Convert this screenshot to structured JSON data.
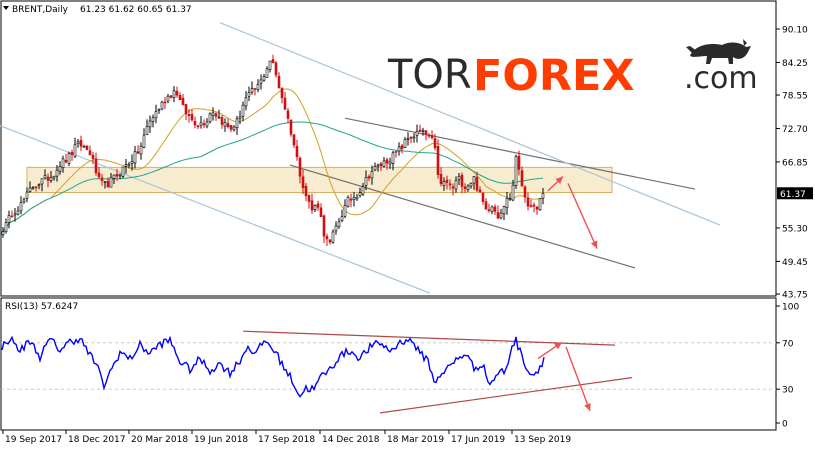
{
  "colors": {
    "background": "#ffffff",
    "frame": "#000000",
    "candle_bull": "#000000",
    "candle_bear": "#d01010",
    "ma_fast": "#d4a020",
    "ma_slow": "#22a58a",
    "rsi_line": "#0000ff",
    "channel_gray": "#707070",
    "channel_blue": "#a8c4d8",
    "rsi_trend": "#b04848",
    "resistance_zone": "#e8c878",
    "arrows": "#f05050",
    "brand_dark": "#2b2b2b",
    "brand_orange": "#ff3d00"
  },
  "header": {
    "instrument_label": "BRENT,Daily",
    "ohlc_values": "61.23 61.62 60.65 61.37"
  },
  "logo": {
    "part1": "TOR",
    "part2": "FOREX",
    "part3": ".com",
    "icon": "bull-icon"
  },
  "chart_data": [
    {
      "type": "candlestick",
      "title": "BRENT,Daily",
      "symbol": "BRENT",
      "timeframe": "Daily",
      "last_bar": {
        "open": 61.23,
        "high": 61.62,
        "low": 60.65,
        "close": 61.37
      },
      "ylim": [
        43.75,
        91.8
      ],
      "y_ticks": [
        "90.10",
        "84.25",
        "78.55",
        "72.70",
        "66.85",
        "61.37",
        "55.30",
        "49.45",
        "43.75"
      ],
      "current_price_label": "61.37",
      "x_tick_labels": [
        "19 Sep 2017",
        "18 Dec 2017",
        "20 Mar 2018",
        "19 Jun 2018",
        "17 Sep 2018",
        "14 Dec 2018",
        "18 Mar 2019",
        "17 Jun 2019",
        "13 Sep 2019"
      ],
      "close_anchors": [
        [
          0,
          55.8
        ],
        [
          4,
          55.0
        ],
        [
          12,
          58.0
        ],
        [
          22,
          59.5
        ],
        [
          32,
          62.5
        ],
        [
          42,
          63.5
        ],
        [
          52,
          64.5
        ],
        [
          60,
          66.5
        ],
        [
          68,
          67.5
        ],
        [
          76,
          69.5
        ],
        [
          80,
          70.0
        ],
        [
          90,
          68.5
        ],
        [
          100,
          63.0
        ],
        [
          106,
          62.8
        ],
        [
          114,
          64.0
        ],
        [
          122,
          65.5
        ],
        [
          130,
          67.0
        ],
        [
          140,
          69.0
        ],
        [
          148,
          73.5
        ],
        [
          156,
          75.5
        ],
        [
          166,
          78.0
        ],
        [
          176,
          79.5
        ],
        [
          182,
          76.5
        ],
        [
          190,
          74.5
        ],
        [
          198,
          73.5
        ],
        [
          206,
          74.0
        ],
        [
          212,
          76.0
        ],
        [
          222,
          74.0
        ],
        [
          230,
          72.5
        ],
        [
          238,
          74.0
        ],
        [
          244,
          77.5
        ],
        [
          252,
          79.0
        ],
        [
          260,
          80.5
        ],
        [
          266,
          83.0
        ],
        [
          271,
          85.0
        ],
        [
          276,
          82.0
        ],
        [
          284,
          77.0
        ],
        [
          292,
          71.5
        ],
        [
          300,
          65.0
        ],
        [
          306,
          61.0
        ],
        [
          312,
          58.5
        ],
        [
          318,
          59.5
        ],
        [
          324,
          54.5
        ],
        [
          329,
          52.0
        ],
        [
          335,
          55.0
        ],
        [
          340,
          57.0
        ],
        [
          348,
          60.0
        ],
        [
          356,
          61.0
        ],
        [
          362,
          62.5
        ],
        [
          370,
          65.0
        ],
        [
          378,
          66.0
        ],
        [
          386,
          67.0
        ],
        [
          394,
          68.0
        ],
        [
          402,
          69.5
        ],
        [
          408,
          71.0
        ],
        [
          414,
          71.5
        ],
        [
          420,
          72.0
        ],
        [
          428,
          71.5
        ],
        [
          434,
          70.0
        ],
        [
          440,
          62.5
        ],
        [
          446,
          63.5
        ],
        [
          452,
          62.0
        ],
        [
          458,
          64.0
        ],
        [
          466,
          62.5
        ],
        [
          474,
          64.0
        ],
        [
          480,
          61.0
        ],
        [
          486,
          58.5
        ],
        [
          492,
          59.5
        ],
        [
          498,
          57.5
        ],
        [
          506,
          60.0
        ],
        [
          512,
          61.0
        ],
        [
          516,
          68.0
        ],
        [
          520,
          64.0
        ],
        [
          526,
          60.5
        ],
        [
          532,
          58.0
        ],
        [
          538,
          59.5
        ],
        [
          545,
          61.37
        ]
      ],
      "price_axis_values": [
        90.1,
        84.25,
        78.55,
        72.7,
        66.85,
        61.37,
        55.3,
        49.45,
        43.75
      ],
      "price_axis_pixels": [
        29,
        63,
        96,
        130,
        164,
        193,
        227,
        261,
        294
      ],
      "channels": [
        {
          "color": "gray",
          "from": [
            345,
            74.5
          ],
          "to": [
            695,
            62.1
          ]
        },
        {
          "color": "gray",
          "from": [
            290,
            66.3
          ],
          "to": [
            635,
            48.3
          ]
        },
        {
          "color": "blue",
          "from": [
            220,
            91.2
          ],
          "to": [
            720,
            55.8
          ]
        },
        {
          "color": "blue",
          "from": [
            0,
            73.2
          ],
          "to": [
            430,
            43.9
          ]
        }
      ],
      "resistance_zone": {
        "from_x": 27,
        "to_x": 612,
        "price_high": 65.9,
        "price_low": 61.5
      },
      "forecast_arrows": [
        {
          "from": [
            548,
            61.8
          ],
          "to": [
            563,
            64.3
          ]
        },
        {
          "from": [
            568,
            63.1
          ],
          "to": [
            597,
            51.7
          ]
        }
      ]
    },
    {
      "type": "line",
      "title": "RSI(13) 57.6247",
      "indicator": "RSI(13)",
      "last_value": 57.6247,
      "ylim": [
        0,
        100
      ],
      "y_ticks": [
        "100",
        "70",
        "30",
        "0"
      ],
      "rsi_anchors": [
        [
          0,
          65
        ],
        [
          10,
          74
        ],
        [
          20,
          63
        ],
        [
          30,
          72
        ],
        [
          40,
          58
        ],
        [
          50,
          73
        ],
        [
          60,
          64
        ],
        [
          70,
          71
        ],
        [
          80,
          74
        ],
        [
          88,
          62
        ],
        [
          96,
          52
        ],
        [
          104,
          33
        ],
        [
          112,
          48
        ],
        [
          120,
          62
        ],
        [
          130,
          56
        ],
        [
          140,
          68
        ],
        [
          150,
          61
        ],
        [
          160,
          69
        ],
        [
          170,
          72
        ],
        [
          180,
          54
        ],
        [
          190,
          47
        ],
        [
          200,
          56
        ],
        [
          210,
          46
        ],
        [
          220,
          52
        ],
        [
          230,
          44
        ],
        [
          240,
          55
        ],
        [
          248,
          67
        ],
        [
          256,
          60
        ],
        [
          264,
          72
        ],
        [
          270,
          68
        ],
        [
          276,
          61
        ],
        [
          284,
          49
        ],
        [
          292,
          38
        ],
        [
          300,
          24
        ],
        [
          306,
          31
        ],
        [
          314,
          30
        ],
        [
          322,
          42
        ],
        [
          330,
          47
        ],
        [
          340,
          59
        ],
        [
          350,
          63
        ],
        [
          360,
          57
        ],
        [
          370,
          66
        ],
        [
          380,
          70
        ],
        [
          390,
          63
        ],
        [
          400,
          70
        ],
        [
          406,
          73
        ],
        [
          414,
          70
        ],
        [
          420,
          60
        ],
        [
          428,
          56
        ],
        [
          434,
          35
        ],
        [
          440,
          43
        ],
        [
          448,
          48
        ],
        [
          456,
          55
        ],
        [
          466,
          61
        ],
        [
          474,
          48
        ],
        [
          482,
          52
        ],
        [
          490,
          34
        ],
        [
          498,
          44
        ],
        [
          506,
          46
        ],
        [
          512,
          68
        ],
        [
          516,
          72
        ],
        [
          522,
          58
        ],
        [
          530,
          43
        ],
        [
          536,
          44
        ],
        [
          545,
          57.6
        ]
      ],
      "trend_lines": [
        {
          "from": [
            243,
            80.0
          ],
          "to": [
            615,
            68.0
          ]
        },
        {
          "from": [
            380,
            9.6
          ],
          "to": [
            632,
            40.0
          ]
        }
      ],
      "forecast_arrows": [
        {
          "from": [
            538,
            56.4
          ],
          "to": [
            562,
            70.4
          ]
        },
        {
          "from": [
            566,
            66.4
          ],
          "to": [
            590,
            11.2
          ]
        }
      ]
    }
  ]
}
